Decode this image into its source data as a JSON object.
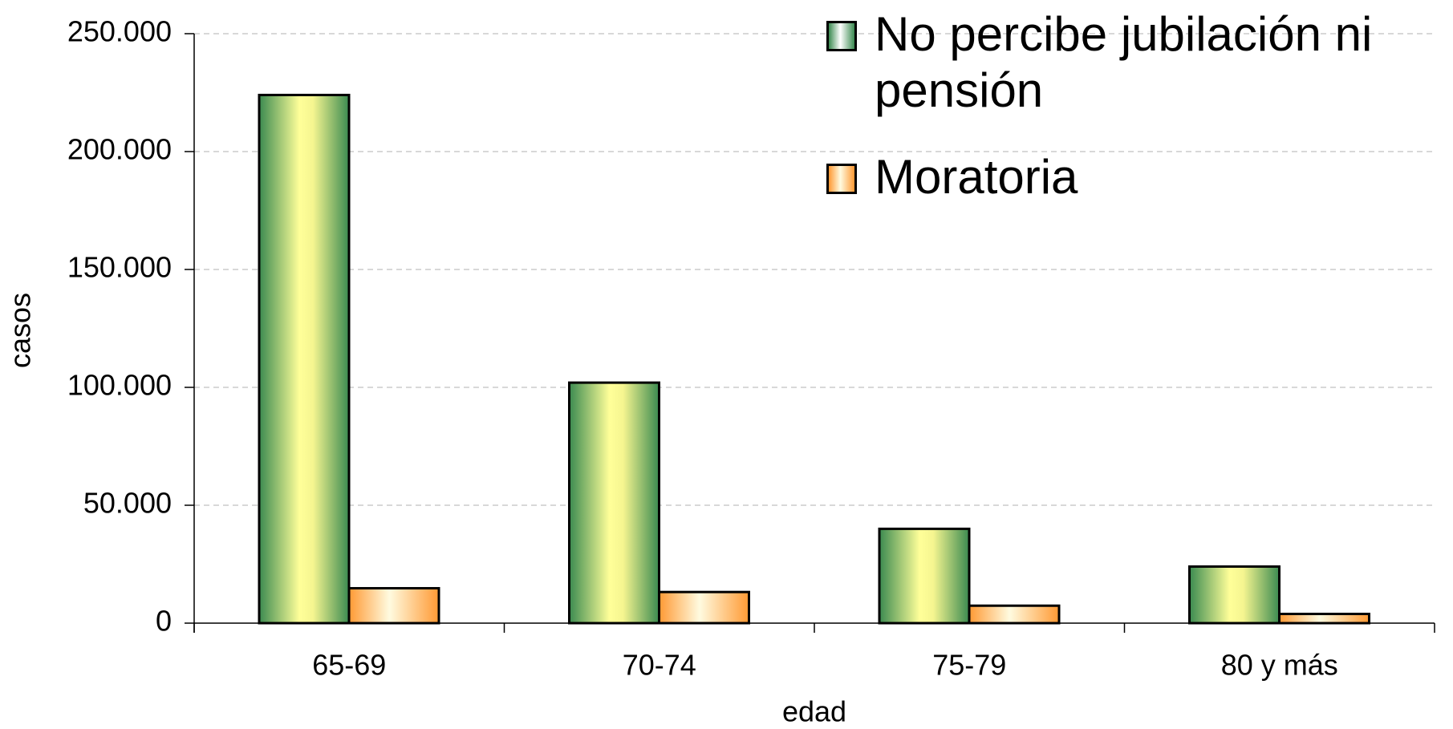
{
  "chart_data": {
    "type": "bar",
    "x_label": "edad",
    "y_label": "casos",
    "categories": [
      "65-69",
      "70-74",
      "75-79",
      "80 y más"
    ],
    "series": [
      {
        "name": "No percibe jubilación ni pensión",
        "color": "#3a8a50",
        "values": [
          224000,
          102000,
          40000,
          24000
        ]
      },
      {
        "name": "Moratoria",
        "color": "#ff9933",
        "values": [
          14800,
          13200,
          7400,
          3900
        ]
      }
    ],
    "ylim": [
      0,
      250000
    ],
    "yticks": [
      0,
      {
        "value": 50000,
        "label": "50.000"
      },
      {
        "value": 100000,
        "label": "100.000"
      },
      {
        "value": 150000,
        "label": "150.000"
      },
      {
        "value": 200000,
        "label": "200.000"
      },
      {
        "value": 250000,
        "label": "250.000"
      }
    ],
    "grid": true,
    "legend": "top-right"
  }
}
